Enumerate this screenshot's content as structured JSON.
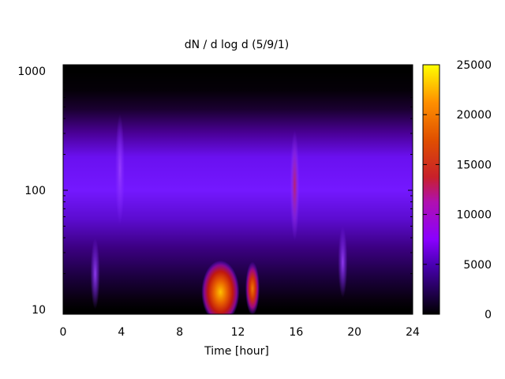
{
  "chart_data": {
    "type": "heatmap",
    "title": "dN / d log d (5/9/1)",
    "xlabel": "Time [hour]",
    "ylabel": "",
    "x_range": [
      0,
      24
    ],
    "y_range": [
      10,
      1000
    ],
    "y_scale": "log",
    "x_ticks": [
      0,
      4,
      8,
      12,
      16,
      20,
      24
    ],
    "y_ticks": [
      10,
      100,
      1000
    ],
    "colorbar": {
      "range": [
        0,
        25000
      ],
      "ticks": [
        0,
        5000,
        10000,
        15000,
        20000,
        25000
      ],
      "palette": "black-purple-red-orange-yellow"
    },
    "grid": false,
    "features": [
      {
        "label": "background band",
        "x_range": [
          0,
          24
        ],
        "y_peak": 150,
        "value": 5500
      },
      {
        "label": "hotspot",
        "x_center": 10.8,
        "y_center": 14,
        "value": 20000
      },
      {
        "label": "hotspot",
        "x_center": 13.0,
        "y_center": 15,
        "value": 16000
      },
      {
        "label": "streak",
        "x_center": 2.2,
        "y_center": 20,
        "value": 7000
      },
      {
        "label": "streak",
        "x_center": 3.9,
        "y_center": 150,
        "value": 6500
      },
      {
        "label": "streak",
        "x_center": 15.9,
        "y_center": 110,
        "value": 8500
      },
      {
        "label": "streak",
        "x_center": 19.2,
        "y_center": 25,
        "value": 6000
      }
    ]
  }
}
